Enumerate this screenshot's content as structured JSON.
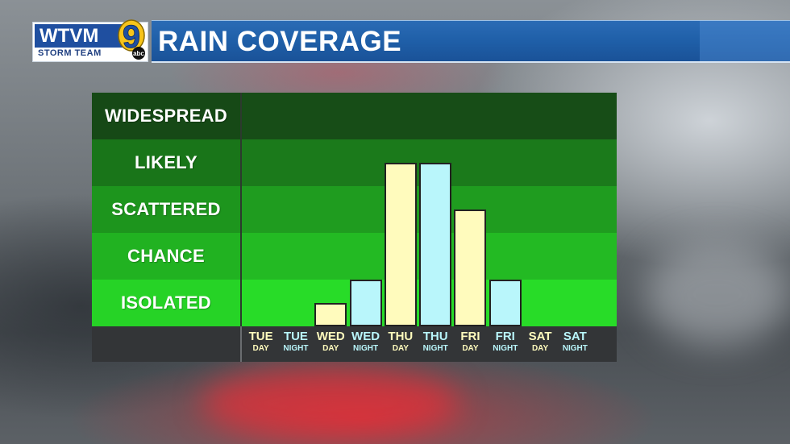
{
  "header": {
    "logo_text": "WTVM",
    "logo_subtext": "STORM TEAM",
    "logo_number": "9",
    "logo_network": "abc",
    "title": "RAIN COVERAGE"
  },
  "colors": {
    "day_bar": "#fffbbd",
    "night_bar": "#b9f6fb",
    "bands": [
      "#174d17",
      "#1b7a1b",
      "#1f9c1f",
      "#23ba23",
      "#28dc28"
    ]
  },
  "chart_data": {
    "type": "bar",
    "title": "RAIN COVERAGE",
    "levels": [
      "WIDESPREAD",
      "LIKELY",
      "SCATTERED",
      "CHANCE",
      "ISOLATED"
    ],
    "y_scale": "0 = none, 1 = isolated, 2 = chance, 3 = scattered, 4 = likely, 5 = widespread",
    "ylim": [
      0,
      5
    ],
    "categories": [
      {
        "day": "TUE",
        "period": "DAY",
        "kind": "day"
      },
      {
        "day": "TUE",
        "period": "NIGHT",
        "kind": "night"
      },
      {
        "day": "WED",
        "period": "DAY",
        "kind": "day"
      },
      {
        "day": "WED",
        "period": "NIGHT",
        "kind": "night"
      },
      {
        "day": "THU",
        "period": "DAY",
        "kind": "day"
      },
      {
        "day": "THU",
        "period": "NIGHT",
        "kind": "night"
      },
      {
        "day": "FRI",
        "period": "DAY",
        "kind": "day"
      },
      {
        "day": "FRI",
        "period": "NIGHT",
        "kind": "night"
      },
      {
        "day": "SAT",
        "period": "DAY",
        "kind": "day"
      },
      {
        "day": "SAT",
        "period": "NIGHT",
        "kind": "night"
      }
    ],
    "values": [
      0,
      0,
      0.5,
      1,
      3.5,
      3.5,
      2.5,
      1,
      0,
      0
    ]
  }
}
